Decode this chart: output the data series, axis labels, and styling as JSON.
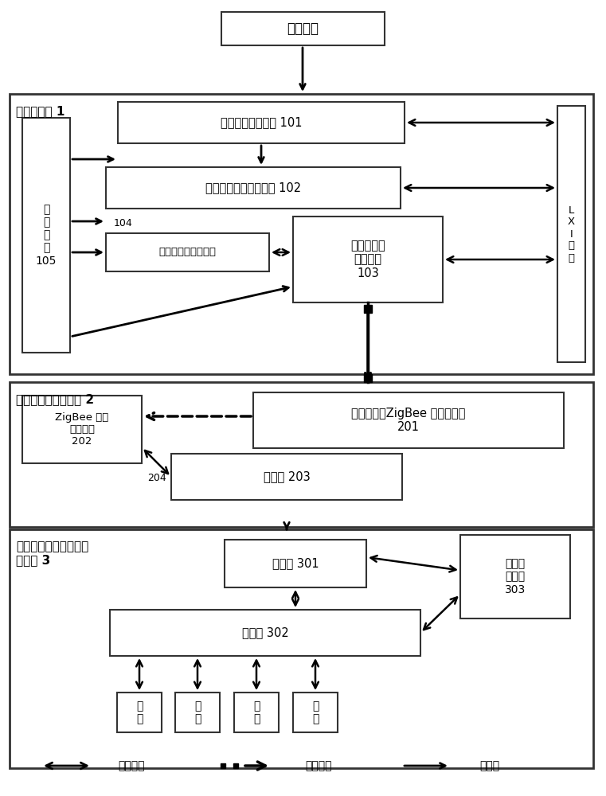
{
  "bg_color": "#ffffff",
  "title_top": "监测水域",
  "section1_label": "前端子系统 1",
  "section2_label": "中部通信转换子系统 2",
  "section3_label": "终端处理统计预警发布\n子系统 3",
  "box101": "采样预处理子系统 101",
  "box102": "图像采集和计数子系统 102",
  "box103": "无线信号传\n输子系统\n103",
  "box_power": "电\n源\n部\n分\n105",
  "box_env": "外部环境监测子系统",
  "label104": "104",
  "box_lxi": "L\nX\nI\n总\n线",
  "box201": "各个簇首（ZigBee 通信模块）\n201",
  "box202": "ZigBee 二次\n汇聚节点\n202",
  "box203": "路由器 203",
  "label204": "204",
  "box301": "服务器 301",
  "box302": "客户机 302",
  "box303": "预警报\n警装置\n303",
  "user_label": "用\n户",
  "legend_wired": "有线通信",
  "legend_wireless": "无线通信",
  "legend_power": "电源线"
}
